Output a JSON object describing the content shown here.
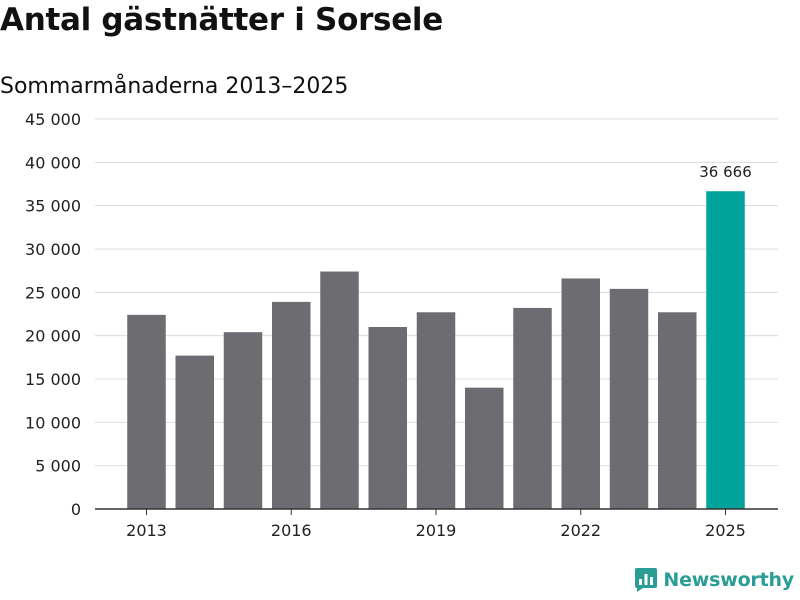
{
  "brand": {
    "name": "Newsworthy",
    "icon": "newsworthy-logo-icon",
    "color": "#2a9d96"
  },
  "chart_data": {
    "type": "bar",
    "title": "Antal gästnätter i Sorsele",
    "subtitle": "Sommarmånaderna 2013–2025",
    "xlabel": "",
    "ylabel": "",
    "categories": [
      "2013",
      "2014",
      "2015",
      "2016",
      "2017",
      "2018",
      "2019",
      "2020",
      "2021",
      "2022",
      "2023",
      "2024",
      "2025"
    ],
    "series": [
      {
        "values": [
          22400,
          17700,
          20400,
          23900,
          27400,
          21000,
          22700,
          14000,
          23200,
          26600,
          25400,
          22700,
          36666
        ]
      }
    ],
    "ylim": [
      0,
      45000
    ],
    "yticks": [
      0,
      5000,
      10000,
      15000,
      20000,
      25000,
      30000,
      35000,
      40000,
      45000
    ],
    "ytick_labels": [
      "0",
      "5 000",
      "10 000",
      "15 000",
      "20 000",
      "25 000",
      "30 000",
      "35 000",
      "40 000",
      "45 000"
    ],
    "xtick_labels": [
      "2013",
      "",
      "",
      "2016",
      "",
      "",
      "2019",
      "",
      "",
      "2022",
      "",
      "",
      "2025"
    ],
    "grid": true,
    "legend": "none",
    "bar_color": "#6d6c71",
    "highlight_color": "#00a39a",
    "highlight_index": 12,
    "annotations": [
      {
        "category": "2025",
        "text": "36 666"
      }
    ]
  }
}
